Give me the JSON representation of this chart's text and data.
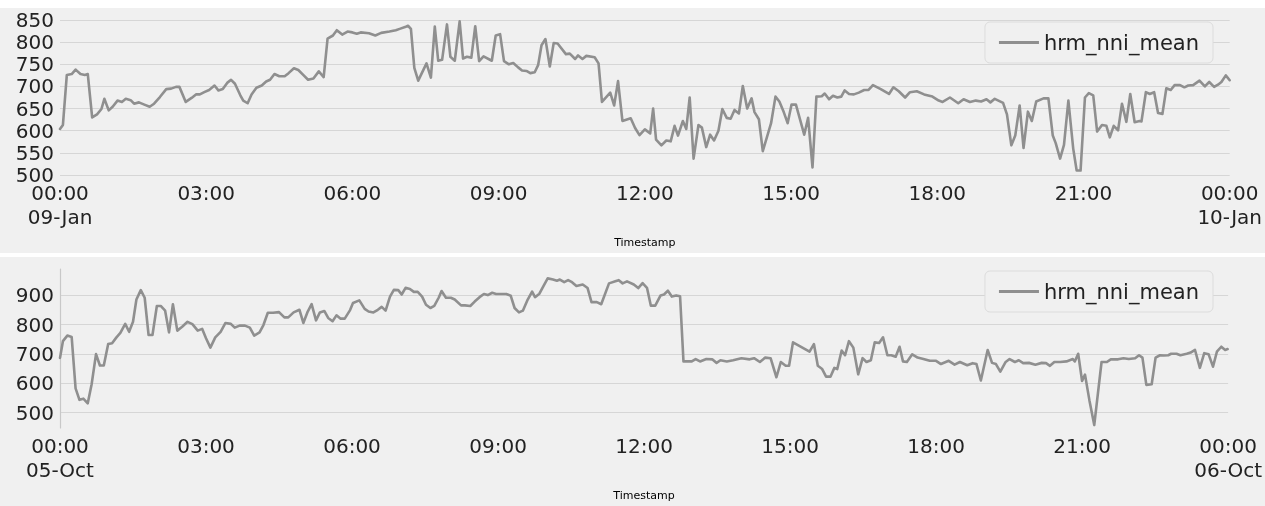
{
  "chart_data": [
    {
      "type": "line",
      "xlabel": "Timestamp",
      "xlim": [
        0,
        24
      ],
      "ylim": [
        500,
        850
      ],
      "xticks": [
        {
          "value": 0,
          "label": "00:00\n09-Jan"
        },
        {
          "value": 3,
          "label": "03:00"
        },
        {
          "value": 6,
          "label": "06:00"
        },
        {
          "value": 9,
          "label": "09:00"
        },
        {
          "value": 12,
          "label": "12:00"
        },
        {
          "value": 15,
          "label": "15:00"
        },
        {
          "value": 18,
          "label": "18:00"
        },
        {
          "value": 21,
          "label": "21:00"
        },
        {
          "value": 24,
          "label": "00:00\n10-Jan"
        }
      ],
      "yticks": [
        500,
        550,
        600,
        650,
        700,
        750,
        800,
        850
      ],
      "grid": "y",
      "legend": "top right",
      "marker": "none",
      "x": [
        0,
        0.06,
        0.14,
        0.24,
        0.32,
        0.42,
        0.51,
        0.57,
        0.66,
        0.76,
        0.85,
        0.91,
        1.0,
        1.08,
        1.18,
        1.27,
        1.35,
        1.45,
        1.52,
        1.62,
        1.73,
        1.84,
        1.93,
        2.05,
        2.18,
        2.28,
        2.38,
        2.45,
        2.58,
        2.7,
        2.79,
        2.87,
        2.96,
        3.06,
        3.17,
        3.25,
        3.34,
        3.43,
        3.51,
        3.59,
        3.7,
        3.76,
        3.85,
        3.93,
        4.03,
        4.14,
        4.23,
        4.31,
        4.4,
        4.5,
        4.61,
        4.69,
        4.8,
        4.89,
        4.99,
        5.09,
        5.2,
        5.31,
        5.41,
        5.49,
        5.6,
        5.68,
        5.79,
        5.9,
        6.0,
        6.09,
        6.17,
        6.34,
        6.47,
        6.59,
        6.76,
        6.89,
        6.97,
        7.08,
        7.14,
        7.2,
        7.27,
        7.35,
        7.52,
        7.61,
        7.69,
        7.76,
        7.84,
        7.94,
        8.01,
        8.1,
        8.2,
        8.27,
        8.35,
        8.44,
        8.52,
        8.6,
        8.69,
        8.86,
        8.94,
        9.03,
        9.11,
        9.21,
        9.3,
        9.4,
        9.48,
        9.57,
        9.65,
        9.74,
        9.81,
        9.88,
        9.96,
        10.05,
        10.13,
        10.21,
        10.38,
        10.46,
        10.57,
        10.63,
        10.72,
        10.8,
        10.97,
        11.05,
        11.12,
        11.29,
        11.37,
        11.45,
        11.54,
        11.71,
        11.8,
        11.89,
        12.0,
        12.11,
        12.17,
        12.23,
        12.34,
        12.44,
        12.53,
        12.61,
        12.68,
        12.78,
        12.85,
        12.92,
        13.0,
        13.1,
        13.17,
        13.26,
        13.34,
        13.42,
        13.51,
        13.59,
        13.68,
        13.76,
        13.84,
        13.93,
        14.01,
        14.1,
        14.19,
        14.25,
        14.34,
        14.42,
        14.59,
        14.68,
        14.76,
        14.85,
        14.93,
        15.01,
        15.1,
        15.27,
        15.35,
        15.44,
        15.52,
        15.63,
        15.69,
        15.78,
        15.86,
        15.95,
        16.03,
        16.1,
        16.19,
        16.29,
        16.39,
        16.5,
        16.59,
        16.68,
        16.84,
        17.01,
        17.1,
        17.21,
        17.34,
        17.44,
        17.58,
        17.73,
        17.9,
        18.03,
        18.11,
        18.26,
        18.43,
        18.54,
        18.67,
        18.79,
        18.9,
        19.01,
        19.09,
        19.18,
        19.35,
        19.43,
        19.52,
        19.6,
        19.69,
        19.77,
        19.86,
        19.94,
        20.03,
        20.18,
        20.28,
        20.37,
        20.43,
        20.52,
        20.6,
        20.69,
        20.79,
        20.86,
        20.94,
        21.03,
        21.11,
        21.2,
        21.28,
        21.38,
        21.47,
        21.54,
        21.62,
        21.71,
        21.79,
        21.88,
        21.96,
        22.05,
        22.15,
        22.19,
        22.28,
        22.36,
        22.45,
        22.53,
        22.62,
        22.7,
        22.79,
        22.87,
        22.98,
        23.07,
        23.15,
        23.25,
        23.38,
        23.49,
        23.58,
        23.68,
        23.76,
        23.83,
        23.92,
        24.0
      ],
      "series": [
        {
          "name": "hrm_nni_mean",
          "color": "#8f8f8f",
          "values": [
            604,
            613,
            726,
            728,
            738,
            728,
            726,
            728,
            630,
            637,
            649,
            672,
            646,
            654,
            668,
            665,
            672,
            669,
            661,
            664,
            659,
            654,
            661,
            676,
            694,
            695,
            699,
            699,
            665,
            674,
            682,
            682,
            687,
            692,
            702,
            691,
            694,
            708,
            715,
            706,
            680,
            668,
            662,
            682,
            697,
            702,
            711,
            715,
            728,
            723,
            723,
            730,
            741,
            737,
            726,
            715,
            718,
            734,
            721,
            808,
            815,
            827,
            817,
            824,
            822,
            819,
            822,
            820,
            815,
            821,
            824,
            827,
            830,
            834,
            837,
            830,
            742,
            713,
            752,
            720,
            835,
            758,
            760,
            840,
            767,
            758,
            847,
            763,
            767,
            765,
            836,
            757,
            768,
            758,
            815,
            818,
            757,
            750,
            753,
            743,
            736,
            735,
            730,
            732,
            748,
            793,
            807,
            745,
            798,
            797,
            773,
            774,
            762,
            770,
            762,
            769,
            766,
            752,
            665,
            686,
            657,
            712,
            622,
            628,
            606,
            590,
            603,
            594,
            650,
            580,
            567,
            578,
            576,
            611,
            589,
            622,
            604,
            675,
            537,
            613,
            607,
            563,
            591,
            578,
            600,
            649,
            629,
            627,
            647,
            639,
            701,
            650,
            673,
            642,
            626,
            554,
            617,
            677,
            666,
            642,
            617,
            659,
            659,
            591,
            629,
            517,
            677,
            678,
            684,
            671,
            679,
            675,
            677,
            691,
            683,
            682,
            686,
            692,
            692,
            703,
            694,
            683,
            698,
            689,
            675,
            687,
            689,
            682,
            677,
            668,
            665,
            675,
            662,
            671,
            665,
            668,
            666,
            671,
            664,
            672,
            663,
            637,
            567,
            589,
            657,
            561,
            643,
            622,
            666,
            673,
            673,
            589,
            572,
            537,
            568,
            668,
            559,
            510,
            510,
            675,
            685,
            680,
            598,
            613,
            611,
            585,
            611,
            601,
            661,
            620,
            683,
            619,
            622,
            621,
            687,
            683,
            687,
            640,
            638,
            696,
            692,
            703,
            703,
            698,
            702,
            703,
            713,
            700,
            710,
            699,
            704,
            710,
            725,
            714
          ]
        }
      ]
    },
    {
      "type": "line",
      "xlabel": "Timestamp",
      "xlim": [
        0,
        24
      ],
      "ylim": [
        448,
        990
      ],
      "xticks": [
        {
          "value": 0,
          "label": "00:00\n05-Oct"
        },
        {
          "value": 3,
          "label": "03:00"
        },
        {
          "value": 6,
          "label": "06:00"
        },
        {
          "value": 9,
          "label": "09:00"
        },
        {
          "value": 12,
          "label": "12:00"
        },
        {
          "value": 15,
          "label": "15:00"
        },
        {
          "value": 18,
          "label": "18:00"
        },
        {
          "value": 21,
          "label": "21:00"
        },
        {
          "value": 24,
          "label": "00:00\n06-Oct"
        }
      ],
      "yticks": [
        500,
        600,
        700,
        800,
        900
      ],
      "grid": "y",
      "legend": "top right",
      "marker": "none",
      "x": [
        0,
        0.06,
        0.15,
        0.24,
        0.32,
        0.4,
        0.48,
        0.57,
        0.65,
        0.74,
        0.82,
        0.9,
        0.99,
        1.07,
        1.16,
        1.24,
        1.34,
        1.42,
        1.5,
        1.57,
        1.66,
        1.74,
        1.82,
        1.9,
        1.99,
        2.07,
        2.16,
        2.24,
        2.32,
        2.41,
        2.51,
        2.62,
        2.72,
        2.83,
        2.92,
        3.0,
        3.09,
        3.19,
        3.3,
        3.4,
        3.51,
        3.59,
        3.69,
        3.8,
        3.9,
        3.99,
        4.1,
        4.18,
        4.27,
        4.38,
        4.5,
        4.61,
        4.69,
        4.8,
        4.92,
        5.0,
        5.09,
        5.17,
        5.26,
        5.34,
        5.43,
        5.51,
        5.6,
        5.68,
        5.76,
        5.85,
        5.96,
        6.02,
        6.15,
        6.26,
        6.34,
        6.44,
        6.53,
        6.61,
        6.69,
        6.78,
        6.86,
        6.95,
        7.02,
        7.1,
        7.19,
        7.27,
        7.35,
        7.44,
        7.52,
        7.61,
        7.69,
        7.78,
        7.84,
        7.93,
        8.03,
        8.11,
        8.24,
        8.32,
        8.43,
        8.52,
        8.62,
        8.71,
        8.79,
        8.88,
        8.96,
        9.06,
        9.17,
        9.26,
        9.34,
        9.43,
        9.51,
        9.61,
        9.7,
        9.76,
        9.85,
        9.93,
        10.02,
        10.13,
        10.21,
        10.27,
        10.36,
        10.44,
        10.52,
        10.61,
        10.74,
        10.84,
        10.92,
        11.03,
        11.12,
        11.28,
        11.41,
        11.48,
        11.56,
        11.65,
        11.79,
        11.88,
        11.97,
        12.06,
        12.14,
        12.23,
        12.34,
        12.41,
        12.49,
        12.57,
        12.66,
        12.74,
        12.81,
        12.98,
        13.06,
        13.15,
        13.28,
        13.4,
        13.49,
        13.57,
        13.7,
        13.83,
        14.0,
        14.17,
        14.26,
        14.38,
        14.49,
        14.6,
        14.72,
        14.81,
        14.91,
        14.98,
        15.06,
        15.4,
        15.49,
        15.57,
        15.66,
        15.74,
        15.83,
        15.91,
        15.97,
        16.06,
        16.13,
        16.21,
        16.3,
        16.4,
        16.49,
        16.57,
        16.66,
        16.74,
        16.83,
        16.91,
        17.0,
        17.08,
        17.17,
        17.25,
        17.32,
        17.4,
        17.51,
        17.62,
        17.74,
        17.87,
        18.0,
        18.1,
        18.26,
        18.38,
        18.49,
        18.64,
        18.75,
        18.83,
        18.92,
        19.06,
        19.15,
        19.23,
        19.32,
        19.43,
        19.51,
        19.62,
        19.7,
        19.79,
        19.91,
        20.04,
        20.17,
        20.26,
        20.34,
        20.43,
        20.55,
        20.68,
        20.81,
        20.85,
        20.92,
        21.0,
        21.06,
        21.15,
        21.25,
        21.4,
        21.51,
        21.59,
        21.74,
        21.85,
        21.96,
        22.09,
        22.17,
        22.24,
        22.32,
        22.43,
        22.51,
        22.6,
        22.68,
        22.77,
        22.83,
        22.94,
        23.02,
        23.15,
        23.23,
        23.32,
        23.42,
        23.51,
        23.6,
        23.69,
        23.77,
        23.86,
        23.94,
        23.99
      ],
      "series": [
        {
          "name": "hrm_nni_mean",
          "color": "#8f8f8f",
          "values": [
            687,
            744,
            763,
            758,
            583,
            544,
            548,
            532,
            597,
            700,
            661,
            661,
            734,
            737,
            757,
            772,
            803,
            776,
            810,
            886,
            918,
            892,
            765,
            765,
            864,
            864,
            848,
            774,
            870,
            780,
            793,
            810,
            802,
            780,
            786,
            754,
            722,
            757,
            776,
            806,
            803,
            790,
            797,
            797,
            790,
            763,
            774,
            799,
            841,
            841,
            843,
            825,
            825,
            842,
            851,
            806,
            845,
            870,
            815,
            842,
            847,
            823,
            812,
            832,
            821,
            821,
            850,
            874,
            883,
            854,
            845,
            842,
            851,
            861,
            848,
            896,
            919,
            918,
            903,
            926,
            922,
            912,
            912,
            896,
            868,
            857,
            864,
            892,
            915,
            892,
            892,
            886,
            866,
            866,
            864,
            879,
            894,
            905,
            901,
            909,
            905,
            905,
            905,
            899,
            857,
            842,
            848,
            886,
            913,
            894,
            906,
            931,
            958,
            954,
            950,
            954,
            945,
            952,
            945,
            932,
            937,
            925,
            877,
            877,
            870,
            941,
            948,
            952,
            941,
            948,
            937,
            925,
            942,
            926,
            865,
            865,
            900,
            903,
            916,
            896,
            900,
            897,
            675,
            675,
            683,
            675,
            683,
            682,
            670,
            679,
            675,
            679,
            686,
            682,
            686,
            673,
            688,
            686,
            621,
            673,
            660,
            660,
            740,
            708,
            734,
            660,
            649,
            623,
            623,
            653,
            649,
            712,
            696,
            744,
            722,
            631,
            686,
            673,
            679,
            740,
            738,
            757,
            696,
            696,
            691,
            725,
            675,
            673,
            699,
            688,
            683,
            677,
            677,
            666,
            677,
            664,
            673,
            662,
            669,
            666,
            610,
            714,
            670,
            666,
            640,
            673,
            683,
            673,
            679,
            669,
            670,
            664,
            670,
            669,
            660,
            673,
            673,
            675,
            683,
            675,
            701,
            608,
            630,
            543,
            458,
            673,
            673,
            682,
            682,
            686,
            683,
            686,
            696,
            688,
            595,
            597,
            688,
            696,
            695,
            696,
            701,
            701,
            696,
            701,
            705,
            714,
            653,
            703,
            699,
            657,
            708,
            725,
            714,
            717
          ]
        }
      ]
    }
  ]
}
